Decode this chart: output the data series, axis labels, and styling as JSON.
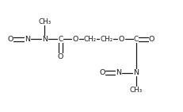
{
  "bg_color": "#ffffff",
  "line_color": "#1a1a1a",
  "text_color": "#1a1a1a",
  "font_size": 6.8,
  "line_width": 0.9,
  "figsize": [
    2.32,
    1.41
  ],
  "dpi": 100,
  "xlim": [
    0,
    10
  ],
  "ylim": [
    0,
    6
  ],
  "top_y": 3.9,
  "bot_y": 2.1,
  "me1_y": 4.85,
  "me2_y": 1.15,
  "o_c1_y": 2.95,
  "o_c2_y": 3.05,
  "x_O1": 0.55,
  "x_N1": 1.48,
  "x_N2": 2.42,
  "x_C1": 3.3,
  "x_O2": 4.1,
  "x_CH2a": 4.9,
  "x_CH2b": 5.8,
  "x_O3": 6.6,
  "x_C2": 7.4,
  "x_O5": 8.25,
  "x_N3": 7.4,
  "x_N4": 6.45,
  "x_O4": 5.55,
  "x_me1": 2.42,
  "x_me2": 7.4
}
